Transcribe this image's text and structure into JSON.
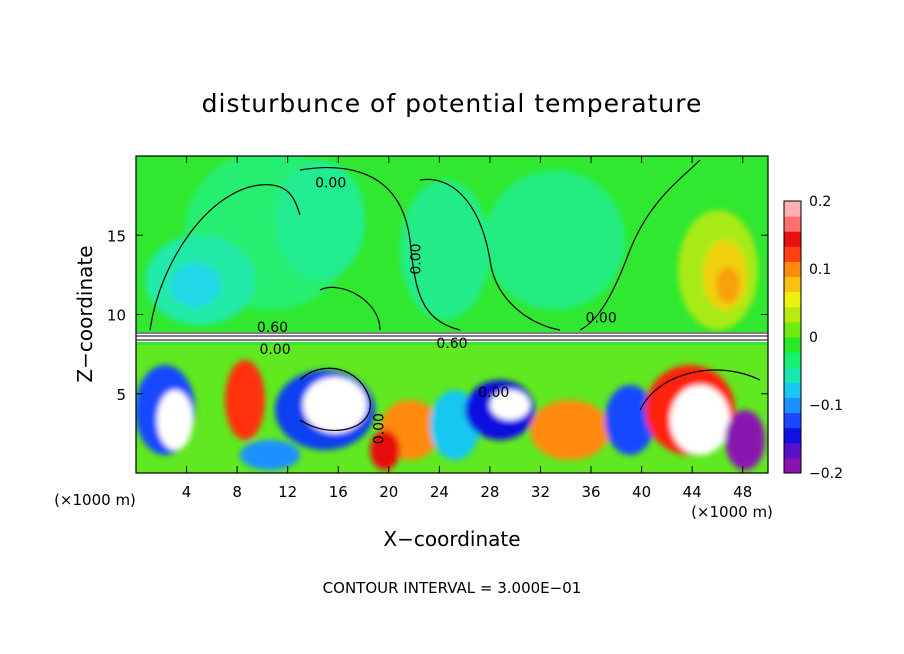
{
  "chart_data": {
    "type": "heatmap",
    "title": "disturbunce of potential temperature",
    "xlabel": "X−coordinate",
    "ylabel": "Z−coordinate",
    "xunit": "(×1000 m)",
    "xlim": [
      0,
      50
    ],
    "ylim": [
      0,
      20
    ],
    "xticks": [
      4,
      8,
      12,
      16,
      20,
      24,
      28,
      32,
      36,
      40,
      44,
      48
    ],
    "xtick_labels": [
      "4",
      "8",
      "12",
      "16",
      "20",
      "24",
      "28",
      "32",
      "36",
      "40",
      "44",
      "48"
    ],
    "yticks": [
      5,
      10,
      15
    ],
    "ytick_labels": [
      "5",
      "10",
      "15"
    ],
    "colorbar": {
      "range": [
        -0.2,
        0.2
      ],
      "ticks": [
        0.2,
        0.1,
        0,
        -0.1,
        -0.2
      ],
      "tick_labels": [
        "0.2",
        "0.1",
        "0",
        "−0.1",
        "−0.2"
      ],
      "colors": [
        "#8a12b0",
        "#5a10c8",
        "#1010e0",
        "#1848ff",
        "#1c90ff",
        "#18c8f0",
        "#18e8b0",
        "#18f070",
        "#28ea28",
        "#70ea10",
        "#b8ea10",
        "#f0f010",
        "#f8c010",
        "#ff8a10",
        "#ff4010",
        "#e81010",
        "#ff7070",
        "#ffb0b0"
      ]
    },
    "contour_labels": [
      {
        "text": "0.00",
        "x": 15.4,
        "z": 18.0
      },
      {
        "text": "0.00",
        "x": 22.5,
        "z": 13.5,
        "rotate": -90
      },
      {
        "text": "0.00",
        "x": 36.8,
        "z": 9.5
      },
      {
        "text": "0.60",
        "x": 10.8,
        "z": 8.9
      },
      {
        "text": "0.00",
        "x": 11.0,
        "z": 7.5
      },
      {
        "text": "0.60",
        "x": 25.0,
        "z": 7.9
      },
      {
        "text": "0.00",
        "x": 28.3,
        "z": 4.8
      },
      {
        "text": "0.00",
        "x": 19.6,
        "z": 2.8,
        "rotate": -90
      }
    ],
    "annotation": "CONTOUR INTERVAL = 3.000E−01"
  }
}
